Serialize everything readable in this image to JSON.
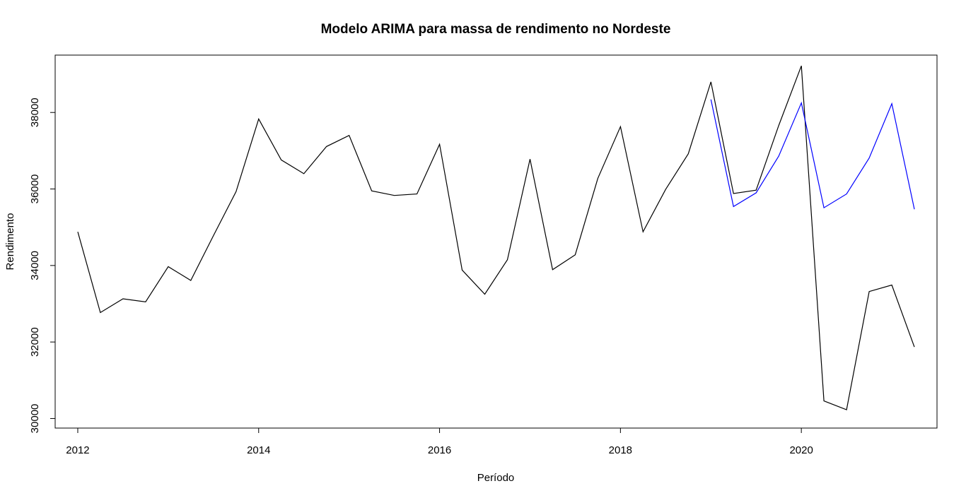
{
  "chart_data": {
    "type": "line",
    "title": "Modelo ARIMA para massa de rendimento no Nordeste",
    "xlabel": "Período",
    "ylabel": "Rendimento",
    "xlim": [
      2011.75,
      2021.5
    ],
    "ylim": [
      29750,
      39500
    ],
    "xticks": [
      2012,
      2014,
      2016,
      2018,
      2020
    ],
    "xtick_labels": [
      "2012",
      "2014",
      "2016",
      "2018",
      "2020"
    ],
    "yticks": [
      30000,
      32000,
      34000,
      36000,
      38000
    ],
    "ytick_labels": [
      "30000",
      "32000",
      "34000",
      "36000",
      "38000"
    ],
    "grid": false,
    "series": [
      {
        "color": "#000000",
        "x": [
          2012.0,
          2012.25,
          2012.5,
          2012.75,
          2013.0,
          2013.25,
          2013.5,
          2013.75,
          2014.0,
          2014.25,
          2014.5,
          2014.75,
          2015.0,
          2015.25,
          2015.5,
          2015.75,
          2016.0,
          2016.25,
          2016.5,
          2016.75,
          2017.0,
          2017.25,
          2017.5,
          2017.75,
          2018.0,
          2018.25,
          2018.5,
          2018.75,
          2019.0,
          2019.25,
          2019.5,
          2019.75,
          2020.0,
          2020.25,
          2020.5,
          2020.75,
          2021.0,
          2021.25
        ],
        "values": [
          34880,
          32770,
          33130,
          33050,
          33970,
          33610,
          34780,
          35930,
          37830,
          36760,
          36400,
          37110,
          37400,
          35950,
          35830,
          35870,
          37170,
          33880,
          33250,
          34150,
          36780,
          33890,
          34280,
          36280,
          37630,
          34880,
          35990,
          36920,
          38800,
          35880,
          35970,
          37660,
          39220,
          30460,
          30230,
          33320,
          33490,
          31870
        ]
      },
      {
        "color": "#0000ff",
        "x": [
          2019.0,
          2019.25,
          2019.5,
          2019.75,
          2020.0,
          2020.25,
          2020.5,
          2020.75,
          2021.0,
          2021.25
        ],
        "values": [
          38340,
          35540,
          35900,
          36860,
          38250,
          35510,
          35870,
          36810,
          38230,
          35470
        ]
      }
    ]
  }
}
